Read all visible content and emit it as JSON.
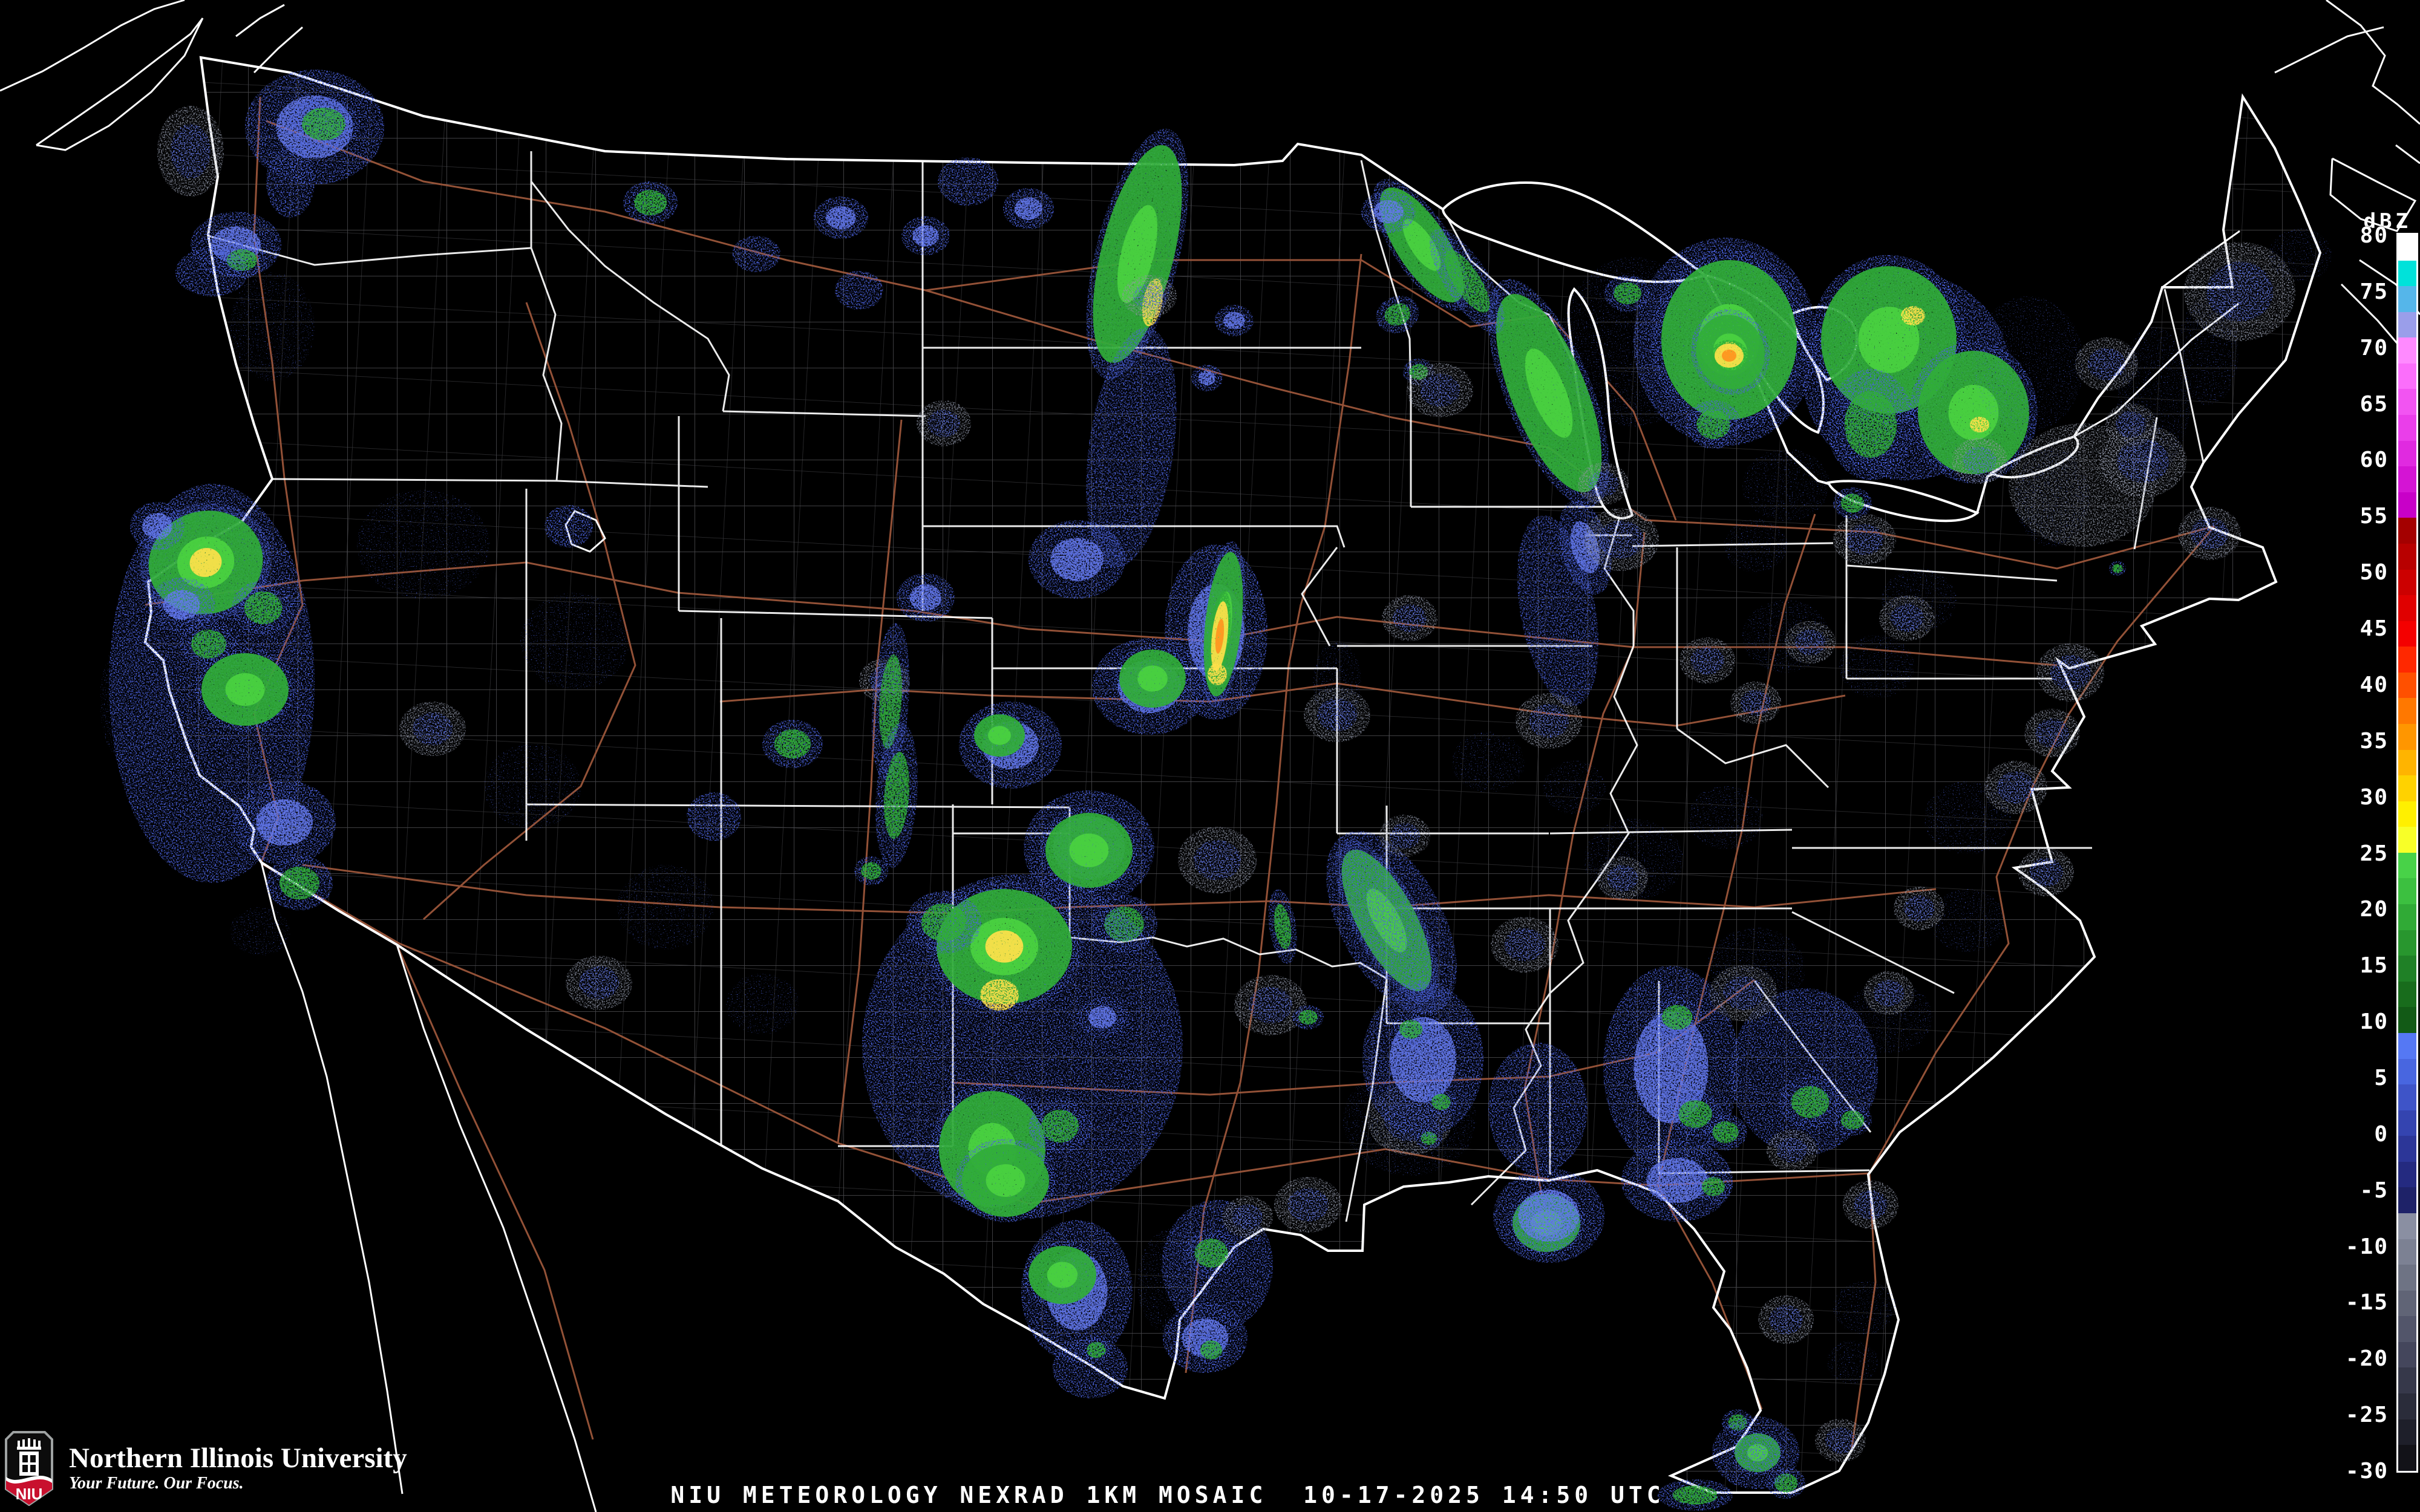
{
  "caption": {
    "text": "NIU METEOROLOGY NEXRAD 1KM MOSAIC  10-17-2025 14:50 UTC"
  },
  "logo": {
    "acronym": "NIU",
    "org": "Northern Illinois University",
    "tagline": "Your Future. Our Focus.",
    "shield_red": "#c8102e",
    "shield_border": "#9ea2a2"
  },
  "colorbar": {
    "unit": "dBZ",
    "tick_labels": [
      80,
      75,
      70,
      65,
      60,
      55,
      50,
      45,
      40,
      35,
      30,
      25,
      20,
      15,
      10,
      5,
      0,
      -5,
      -10,
      -15,
      -20,
      -25,
      -30
    ],
    "segments": [
      "#ffffff",
      "#00e2da",
      "#55b6ea",
      "#9a9eea",
      "#ff8aff",
      "#fb6efb",
      "#f254f2",
      "#ea3eea",
      "#e02ae0",
      "#d414d4",
      "#c800c8",
      "#a40000",
      "#b80000",
      "#cc0000",
      "#e00000",
      "#f40000",
      "#ff2800",
      "#ff5000",
      "#ff7800",
      "#ff9600",
      "#ffb400",
      "#ffd200",
      "#fff000",
      "#f8ff28",
      "#48d248",
      "#3cc040",
      "#30aa36",
      "#28962e",
      "#1f8026",
      "#186c1c",
      "#125a16",
      "#5578f4",
      "#4866e0",
      "#3e54c8",
      "#3444b0",
      "#2c3698",
      "#242a80",
      "#1e2268",
      "#8a8fa2",
      "#7c8193",
      "#6e7384",
      "#606476",
      "#52556a",
      "#44465c",
      "#36384a",
      "#2a2c3a",
      "#1e1f2a",
      "#121218"
    ]
  },
  "map_colors": {
    "state_border": "#ffffff",
    "county_border": "#8f8f97",
    "highway": "#9b563a",
    "background": "#000000"
  },
  "radar_palette": {
    "light_precip_blue": "#4a62dd",
    "blue_core": "#6377ea",
    "moderate_green": "#2fae38",
    "bright_green": "#4ad23f",
    "heavy_yellow": "#ffe14a",
    "intense_orange": "#ff9420",
    "clutter_gray": "#8f95a6"
  },
  "radar_cells": [
    [
      520,
      210,
      115,
      95,
      0,
      "b"
    ],
    [
      535,
      205,
      60,
      45,
      0,
      "g"
    ],
    [
      315,
      250,
      55,
      75,
      0,
      "m"
    ],
    [
      480,
      300,
      40,
      60,
      0,
      "B"
    ],
    [
      450,
      540,
      70,
      90,
      0,
      "s"
    ],
    [
      390,
      405,
      75,
      55,
      0,
      "b"
    ],
    [
      400,
      430,
      42,
      30,
      0,
      "g"
    ],
    [
      350,
      450,
      60,
      40,
      0,
      "B"
    ],
    [
      350,
      1130,
      170,
      330,
      0,
      "B"
    ],
    [
      340,
      930,
      95,
      85,
      -15,
      "h"
    ],
    [
      345,
      1065,
      48,
      40,
      0,
      "g"
    ],
    [
      405,
      1140,
      72,
      60,
      0,
      "G"
    ],
    [
      435,
      1005,
      52,
      45,
      0,
      "g"
    ],
    [
      300,
      1000,
      55,
      45,
      0,
      "b"
    ],
    [
      470,
      1360,
      85,
      70,
      0,
      "b"
    ],
    [
      495,
      1460,
      55,
      45,
      0,
      "g"
    ],
    [
      230,
      1160,
      65,
      120,
      0,
      "s"
    ],
    [
      260,
      870,
      45,
      40,
      0,
      "b"
    ],
    [
      430,
      1540,
      50,
      40,
      0,
      "s"
    ],
    [
      700,
      900,
      110,
      90,
      0,
      "s"
    ],
    [
      950,
      1060,
      90,
      80,
      0,
      "s"
    ],
    [
      880,
      1300,
      80,
      70,
      0,
      "s"
    ],
    [
      715,
      1205,
      55,
      45,
      0,
      "m"
    ],
    [
      990,
      1625,
      55,
      45,
      0,
      "m"
    ],
    [
      1100,
      1500,
      80,
      70,
      0,
      "s"
    ],
    [
      1260,
      1660,
      60,
      50,
      0,
      "s"
    ],
    [
      1440,
      1440,
      28,
      24,
      0,
      "g"
    ],
    [
      940,
      870,
      40,
      35,
      0,
      "B"
    ],
    [
      1310,
      1230,
      50,
      40,
      0,
      "g"
    ],
    [
      1180,
      1350,
      45,
      40,
      0,
      "B"
    ],
    [
      1075,
      335,
      45,
      35,
      0,
      "g"
    ],
    [
      1390,
      360,
      45,
      35,
      0,
      "b"
    ],
    [
      1530,
      390,
      40,
      32,
      0,
      "b"
    ],
    [
      1600,
      300,
      50,
      40,
      0,
      "B"
    ],
    [
      1700,
      345,
      42,
      34,
      0,
      "b"
    ],
    [
      1420,
      480,
      40,
      32,
      0,
      "B"
    ],
    [
      1250,
      420,
      40,
      30,
      0,
      "B"
    ],
    [
      1880,
      420,
      60,
      185,
      14,
      "G"
    ],
    [
      1905,
      500,
      16,
      40,
      10,
      "Y"
    ],
    [
      1870,
      740,
      70,
      200,
      8,
      "B"
    ],
    [
      2040,
      530,
      32,
      26,
      0,
      "b"
    ],
    [
      1995,
      625,
      26,
      22,
      0,
      "b"
    ],
    [
      2310,
      520,
      36,
      30,
      -20,
      "g"
    ],
    [
      2345,
      615,
      26,
      22,
      0,
      "g"
    ],
    [
      2560,
      650,
      62,
      175,
      -22,
      "G"
    ],
    [
      2575,
      1010,
      62,
      160,
      -10,
      "B"
    ],
    [
      2620,
      905,
      40,
      80,
      -15,
      "b"
    ],
    [
      2350,
      405,
      42,
      110,
      -33,
      "G"
    ],
    [
      2425,
      465,
      36,
      100,
      -33,
      "g"
    ],
    [
      2295,
      350,
      45,
      35,
      0,
      "b"
    ],
    [
      2380,
      645,
      55,
      45,
      0,
      "m"
    ],
    [
      2700,
      565,
      120,
      140,
      0,
      "s"
    ],
    [
      2690,
      485,
      38,
      30,
      0,
      "g"
    ],
    [
      2650,
      800,
      42,
      35,
      0,
      "m"
    ],
    [
      1780,
      925,
      80,
      65,
      0,
      "b"
    ],
    [
      1560,
      700,
      45,
      38,
      0,
      "m"
    ],
    [
      1900,
      490,
      45,
      35,
      0,
      "m"
    ],
    [
      2010,
      1045,
      85,
      145,
      0,
      "b"
    ],
    [
      2022,
      1032,
      30,
      120,
      6,
      "G"
    ],
    [
      2016,
      1052,
      13,
      58,
      6,
      "H"
    ],
    [
      2012,
      1115,
      16,
      18,
      0,
      "Y"
    ],
    [
      1900,
      1135,
      95,
      80,
      0,
      "b"
    ],
    [
      1905,
      1122,
      55,
      48,
      0,
      "G"
    ],
    [
      1670,
      1232,
      85,
      72,
      0,
      "b"
    ],
    [
      1652,
      1216,
      42,
      35,
      0,
      "G"
    ],
    [
      1530,
      988,
      48,
      40,
      0,
      "b"
    ],
    [
      1462,
      1125,
      42,
      36,
      0,
      "m"
    ],
    [
      1472,
      1160,
      30,
      130,
      4,
      "g"
    ],
    [
      1482,
      1315,
      34,
      120,
      4,
      "g"
    ],
    [
      1800,
      1402,
      108,
      95,
      0,
      "b"
    ],
    [
      1800,
      1406,
      72,
      62,
      0,
      "G"
    ],
    [
      1858,
      1528,
      55,
      48,
      0,
      "g"
    ],
    [
      2012,
      1422,
      65,
      55,
      0,
      "m"
    ],
    [
      2120,
      1532,
      22,
      62,
      -8,
      "g"
    ],
    [
      2210,
      1182,
      55,
      45,
      0,
      "m"
    ],
    [
      2330,
      1022,
      46,
      38,
      0,
      "m"
    ],
    [
      2100,
      1662,
      60,
      50,
      0,
      "m"
    ],
    [
      2162,
      1682,
      26,
      20,
      0,
      "g"
    ],
    [
      2330,
      1852,
      110,
      92,
      0,
      "s"
    ],
    [
      2330,
      1852,
      70,
      58,
      0,
      "m"
    ],
    [
      2362,
      1882,
      22,
      18,
      0,
      "g"
    ],
    [
      1690,
      1730,
      265,
      285,
      0,
      "B"
    ],
    [
      1660,
      1565,
      112,
      95,
      0,
      "h"
    ],
    [
      1652,
      1645,
      32,
      26,
      0,
      "Y"
    ],
    [
      1560,
      1525,
      62,
      52,
      0,
      "g"
    ],
    [
      1640,
      1900,
      88,
      96,
      0,
      "G"
    ],
    [
      1752,
      1862,
      52,
      45,
      0,
      "g"
    ],
    [
      1662,
      1952,
      72,
      60,
      0,
      "G"
    ],
    [
      1822,
      1682,
      42,
      34,
      0,
      "b"
    ],
    [
      1780,
      2135,
      92,
      118,
      0,
      "b"
    ],
    [
      1756,
      2108,
      56,
      48,
      0,
      "G"
    ],
    [
      1802,
      2262,
      62,
      50,
      0,
      "B"
    ],
    [
      1812,
      2232,
      26,
      22,
      0,
      "g"
    ],
    [
      2012,
      2092,
      92,
      108,
      0,
      "B"
    ],
    [
      2002,
      2072,
      46,
      40,
      0,
      "g"
    ],
    [
      2062,
      2012,
      42,
      34,
      0,
      "m"
    ],
    [
      1992,
      2212,
      70,
      58,
      0,
      "b"
    ],
    [
      2002,
      2232,
      30,
      26,
      0,
      "g"
    ],
    [
      2162,
      1992,
      56,
      46,
      0,
      "m"
    ],
    [
      1940,
      2120,
      60,
      90,
      0,
      "s"
    ],
    [
      2292,
      1522,
      48,
      130,
      -28,
      "G"
    ],
    [
      2300,
      1525,
      85,
      165,
      -28,
      "B"
    ],
    [
      2322,
      1382,
      42,
      35,
      0,
      "m"
    ],
    [
      2520,
      1562,
      56,
      46,
      0,
      "m"
    ],
    [
      2352,
      1752,
      100,
      128,
      0,
      "b"
    ],
    [
      2332,
      1702,
      32,
      26,
      0,
      "g"
    ],
    [
      2382,
      1822,
      26,
      22,
      0,
      "g"
    ],
    [
      2556,
      2022,
      56,
      48,
      0,
      "G"
    ],
    [
      2560,
      2010,
      92,
      78,
      0,
      "b"
    ],
    [
      2542,
      1832,
      82,
      108,
      0,
      "B"
    ],
    [
      2762,
      1765,
      112,
      168,
      0,
      "b"
    ],
    [
      2772,
      1682,
      42,
      34,
      0,
      "g"
    ],
    [
      2802,
      1842,
      46,
      38,
      0,
      "g"
    ],
    [
      2852,
      1872,
      36,
      30,
      0,
      "g"
    ],
    [
      2772,
      1952,
      92,
      68,
      0,
      "b"
    ],
    [
      2832,
      1962,
      32,
      26,
      0,
      "g"
    ],
    [
      2982,
      1772,
      122,
      138,
      0,
      "B"
    ],
    [
      2992,
      1822,
      52,
      44,
      0,
      "g"
    ],
    [
      3062,
      1852,
      32,
      26,
      0,
      "g"
    ],
    [
      2962,
      1902,
      42,
      34,
      0,
      "m"
    ],
    [
      3122,
      1682,
      72,
      60,
      0,
      "s"
    ],
    [
      2560,
      1192,
      55,
      46,
      0,
      "m"
    ],
    [
      2210,
      1130,
      40,
      70,
      0,
      "s"
    ],
    [
      2680,
      892,
      62,
      52,
      0,
      "m"
    ],
    [
      2460,
      1260,
      60,
      50,
      0,
      "s"
    ],
    [
      2700,
      1422,
      82,
      68,
      0,
      "s"
    ],
    [
      2852,
      1352,
      62,
      52,
      0,
      "s"
    ],
    [
      2682,
      1452,
      42,
      36,
      0,
      "m"
    ],
    [
      2602,
      1302,
      52,
      44,
      0,
      "s"
    ],
    [
      2882,
      1642,
      56,
      46,
      0,
      "m"
    ],
    [
      2902,
      1602,
      82,
      68,
      0,
      "s"
    ],
    [
      2952,
      1052,
      72,
      60,
      0,
      "s"
    ],
    [
      3102,
      1102,
      62,
      52,
      0,
      "s"
    ],
    [
      2992,
      1062,
      42,
      35,
      0,
      "m"
    ],
    [
      2822,
      1092,
      46,
      38,
      0,
      "m"
    ],
    [
      2902,
      1162,
      42,
      35,
      0,
      "m"
    ],
    [
      3152,
      1022,
      46,
      38,
      0,
      "m"
    ],
    [
      3172,
      992,
      62,
      52,
      0,
      "s"
    ],
    [
      2952,
      802,
      72,
      60,
      0,
      "s"
    ],
    [
      2902,
      902,
      52,
      44,
      0,
      "s"
    ],
    [
      3082,
      892,
      52,
      42,
      0,
      "m"
    ],
    [
      3062,
      832,
      32,
      26,
      0,
      "g"
    ],
    [
      2852,
      565,
      152,
      172,
      0,
      "B"
    ],
    [
      2858,
      562,
      112,
      132,
      0,
      "G"
    ],
    [
      2860,
      582,
      56,
      62,
      -20,
      "h"
    ],
    [
      2858,
      588,
      24,
      20,
      0,
      "H"
    ],
    [
      2832,
      702,
      46,
      40,
      0,
      "g"
    ],
    [
      3152,
      622,
      172,
      172,
      0,
      "B"
    ],
    [
      3122,
      562,
      112,
      122,
      0,
      "G"
    ],
    [
      3162,
      522,
      20,
      16,
      0,
      "Y"
    ],
    [
      3092,
      702,
      72,
      92,
      0,
      "g"
    ],
    [
      3262,
      682,
      92,
      102,
      0,
      "G"
    ],
    [
      3272,
      702,
      16,
      13,
      0,
      "Y"
    ],
    [
      3272,
      762,
      46,
      38,
      0,
      "m"
    ],
    [
      3352,
      602,
      92,
      112,
      0,
      "s"
    ],
    [
      3392,
      822,
      62,
      82,
      0,
      "s"
    ],
    [
      3442,
      802,
      122,
      102,
      0,
      "M"
    ],
    [
      3542,
      762,
      72,
      60,
      0,
      "m"
    ],
    [
      3482,
      602,
      52,
      44,
      0,
      "m"
    ],
    [
      3522,
      702,
      42,
      36,
      0,
      "m"
    ],
    [
      3702,
      482,
      92,
      82,
      0,
      "m"
    ],
    [
      3802,
      422,
      52,
      44,
      0,
      "s"
    ],
    [
      3652,
      882,
      52,
      44,
      0,
      "m"
    ],
    [
      3560,
      660,
      60,
      120,
      0,
      "s"
    ],
    [
      3650,
      580,
      50,
      90,
      0,
      "s"
    ],
    [
      3500,
      940,
      14,
      12,
      0,
      "g"
    ],
    [
      3422,
      1112,
      56,
      48,
      0,
      "m"
    ],
    [
      3392,
      1212,
      46,
      40,
      0,
      "m"
    ],
    [
      3332,
      1302,
      52,
      44,
      0,
      "m"
    ],
    [
      3252,
      1352,
      72,
      60,
      0,
      "s"
    ],
    [
      3382,
      1442,
      46,
      40,
      0,
      "m"
    ],
    [
      3252,
      1522,
      62,
      52,
      0,
      "s"
    ],
    [
      3172,
      1502,
      42,
      36,
      0,
      "m"
    ],
    [
      3122,
      1642,
      42,
      36,
      0,
      "m"
    ],
    [
      3092,
      1992,
      46,
      40,
      0,
      "m"
    ],
    [
      3082,
      2162,
      52,
      44,
      0,
      "s"
    ],
    [
      3062,
      2252,
      42,
      36,
      0,
      "s"
    ],
    [
      2952,
      2182,
      46,
      40,
      0,
      "m"
    ],
    [
      3042,
      2382,
      42,
      36,
      0,
      "m"
    ],
    [
      2905,
      2402,
      38,
      32,
      0,
      "G"
    ],
    [
      2952,
      2452,
      32,
      26,
      0,
      "g"
    ],
    [
      2872,
      2352,
      26,
      22,
      0,
      "g"
    ],
    [
      2902,
      2402,
      72,
      60,
      0,
      "B"
    ],
    [
      2802,
      2472,
      62,
      26,
      0,
      "g"
    ]
  ]
}
